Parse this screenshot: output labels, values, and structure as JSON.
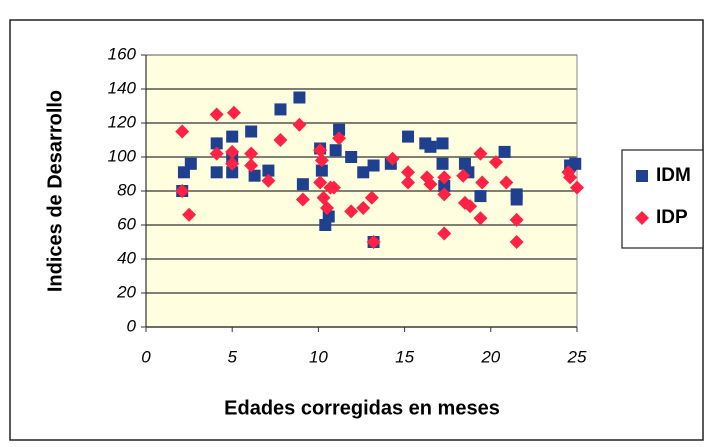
{
  "chart_data": {
    "type": "scatter",
    "xlabel": "Edades corregidas en meses",
    "ylabel": "Indices de Desarrollo",
    "xlim": [
      0,
      25
    ],
    "xticks": [
      0,
      5,
      10,
      15,
      20,
      25
    ],
    "ylim": [
      0,
      160
    ],
    "yticks": [
      0,
      20,
      40,
      60,
      80,
      100,
      120,
      140,
      160
    ],
    "grid": true,
    "legend": "right",
    "series": [
      {
        "name": "IDM",
        "color": "#1f3f8f",
        "marker": "square",
        "x": [
          2.1,
          2.2,
          2.6,
          4.1,
          4.1,
          5.0,
          5.0,
          5.0,
          6.1,
          6.3,
          7.1,
          7.8,
          8.9,
          9.1,
          10.1,
          10.2,
          10.4,
          10.6,
          11.0,
          11.2,
          11.9,
          12.6,
          13.2,
          13.2,
          14.2,
          15.2,
          16.2,
          16.5,
          17.2,
          17.2,
          17.3,
          18.5,
          18.7,
          19.4,
          20.8,
          21.5,
          21.5,
          24.6,
          24.9
        ],
        "values": [
          80,
          91,
          96,
          108,
          91,
          112,
          91,
          99,
          115,
          89,
          92,
          128,
          135,
          84,
          105,
          92,
          60,
          65,
          104,
          116,
          100,
          91,
          95,
          50,
          96,
          112,
          108,
          106,
          108,
          96,
          83,
          96,
          91,
          77,
          103,
          78,
          75,
          95,
          96
        ]
      },
      {
        "name": "IDP",
        "color": "#ff2244",
        "marker": "diamond",
        "x": [
          2.1,
          2.1,
          2.5,
          4.1,
          4.1,
          5.1,
          5.0,
          5.0,
          6.1,
          6.1,
          7.1,
          7.8,
          8.9,
          9.1,
          10.1,
          10.2,
          10.1,
          10.3,
          10.5,
          10.7,
          10.9,
          11.2,
          11.9,
          12.6,
          13.1,
          13.2,
          14.3,
          15.2,
          15.2,
          16.3,
          16.5,
          17.3,
          17.3,
          17.3,
          18.4,
          18.5,
          18.8,
          19.4,
          19.5,
          19.4,
          20.3,
          20.9,
          21.5,
          21.5,
          24.5,
          24.6,
          25.0
        ],
        "values": [
          115,
          80,
          66,
          125,
          102,
          126,
          103,
          96,
          102,
          95,
          86,
          110,
          119,
          75,
          104,
          98,
          85,
          76,
          70,
          82,
          82,
          111,
          68,
          70,
          76,
          50,
          99,
          91,
          85,
          88,
          84,
          88,
          78,
          55,
          89,
          73,
          71,
          102,
          85,
          64,
          97,
          85,
          63,
          50,
          91,
          88,
          82
        ]
      }
    ]
  }
}
